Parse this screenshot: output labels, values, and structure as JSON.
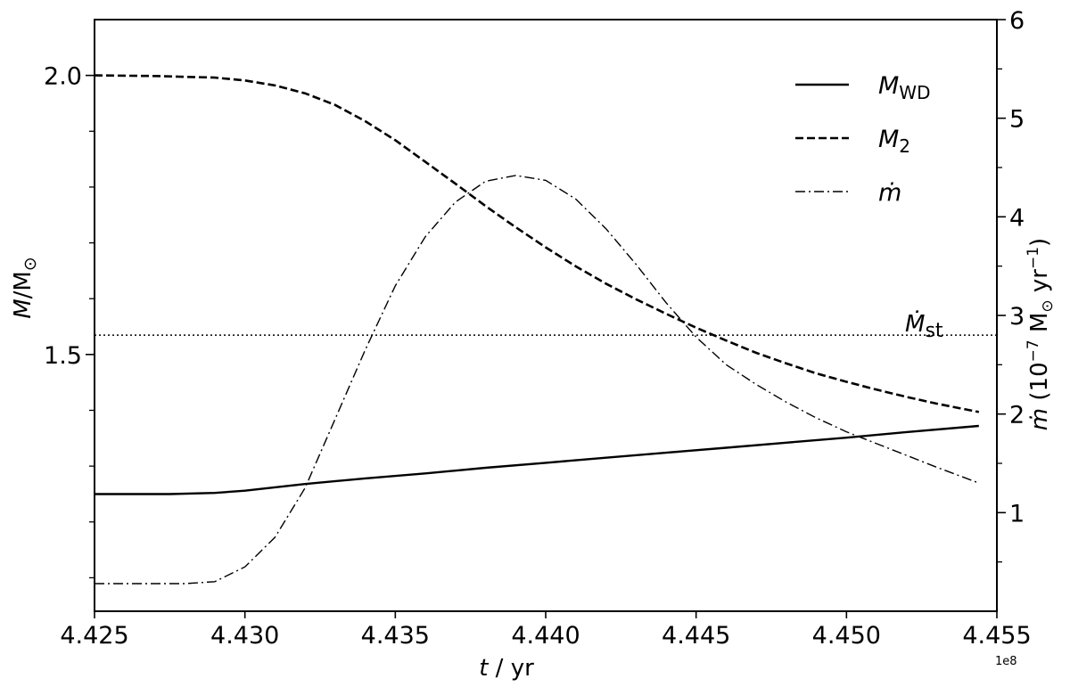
{
  "chart_data": {
    "type": "line",
    "x_axis": {
      "label_var": "t",
      "label_unit": " / yr",
      "range": [
        4.425,
        4.455
      ],
      "ticks": [
        4.425,
        4.43,
        4.435,
        4.44,
        4.445,
        4.45,
        4.455
      ],
      "tick_labels": [
        "4.425",
        "4.430",
        "4.435",
        "4.440",
        "4.445",
        "4.450",
        "4.455"
      ],
      "offset_text": "1e8"
    },
    "y_left": {
      "label_var": "M",
      "label_unit": "/M",
      "label_sub": "⊙",
      "range": [
        1.04,
        2.1
      ],
      "ticks": [
        1.5,
        2.0
      ],
      "tick_labels": [
        "1.5",
        "2.0"
      ],
      "minor_ticks": [
        1.1,
        1.2,
        1.3,
        1.4,
        1.6,
        1.7,
        1.8,
        1.9
      ]
    },
    "y_right": {
      "label_var": "ṁ",
      "label_unit": " (10",
      "label_exp": "−7",
      "label_unit2": " M",
      "label_sub": "⊙",
      "label_unit3": " yr",
      "label_exp2": "−1",
      "label_close": ")",
      "range": [
        0,
        6
      ],
      "ticks": [
        1,
        2,
        3,
        4,
        5,
        6
      ],
      "tick_labels": [
        "1",
        "2",
        "3",
        "4",
        "5",
        "6"
      ],
      "minor_ticks": [
        0.5,
        1.5,
        2.5,
        3.5,
        4.5,
        5.5
      ]
    },
    "series": [
      {
        "name": "M_WD",
        "axis": "left",
        "style": "solid",
        "x": [
          4.425,
          4.4275,
          4.429,
          4.43,
          4.431,
          4.432,
          4.434,
          4.436,
          4.438,
          4.44,
          4.442,
          4.444,
          4.446,
          4.448,
          4.45,
          4.452,
          4.4544
        ],
        "y": [
          1.25,
          1.25,
          1.252,
          1.256,
          1.262,
          1.268,
          1.278,
          1.287,
          1.297,
          1.306,
          1.315,
          1.324,
          1.333,
          1.342,
          1.351,
          1.361,
          1.372
        ]
      },
      {
        "name": "M_2",
        "axis": "left",
        "style": "dashed",
        "x": [
          4.425,
          4.427,
          4.429,
          4.43,
          4.431,
          4.432,
          4.433,
          4.434,
          4.435,
          4.436,
          4.437,
          4.438,
          4.439,
          4.44,
          4.441,
          4.442,
          4.443,
          4.444,
          4.445,
          4.446,
          4.447,
          4.448,
          4.449,
          4.45,
          4.451,
          4.452,
          4.453,
          4.4544
        ],
        "y": [
          2.0,
          1.999,
          1.996,
          1.991,
          1.982,
          1.968,
          1.947,
          1.918,
          1.884,
          1.845,
          1.806,
          1.766,
          1.728,
          1.692,
          1.658,
          1.627,
          1.599,
          1.573,
          1.548,
          1.525,
          1.503,
          1.484,
          1.466,
          1.451,
          1.437,
          1.424,
          1.412,
          1.397
        ]
      },
      {
        "name": "ṁ",
        "axis": "right",
        "style": "dashdot",
        "x": [
          4.425,
          4.427,
          4.428,
          4.429,
          4.43,
          4.431,
          4.432,
          4.433,
          4.434,
          4.435,
          4.436,
          4.437,
          4.438,
          4.439,
          4.44,
          4.441,
          4.442,
          4.443,
          4.444,
          4.445,
          4.446,
          4.447,
          4.448,
          4.449,
          4.45,
          4.451,
          4.452,
          4.453,
          4.4544
        ],
        "y": [
          0.28,
          0.28,
          0.28,
          0.3,
          0.45,
          0.75,
          1.25,
          1.95,
          2.65,
          3.3,
          3.8,
          4.15,
          4.36,
          4.42,
          4.37,
          4.18,
          3.88,
          3.52,
          3.13,
          2.78,
          2.5,
          2.3,
          2.12,
          1.96,
          1.82,
          1.7,
          1.58,
          1.46,
          1.3
        ]
      }
    ],
    "reference_line": {
      "label_var": "Ṁ",
      "label_sub": "st",
      "axis": "right",
      "value": 2.8,
      "style": "dotted"
    },
    "legend": {
      "placement": "top-right",
      "entries": [
        {
          "var": "M",
          "sub": "WD",
          "style": "solid"
        },
        {
          "var": "M",
          "sub": "2",
          "style": "dashed"
        },
        {
          "var": "ṁ",
          "sub": "",
          "style": "dashdot"
        }
      ]
    }
  }
}
